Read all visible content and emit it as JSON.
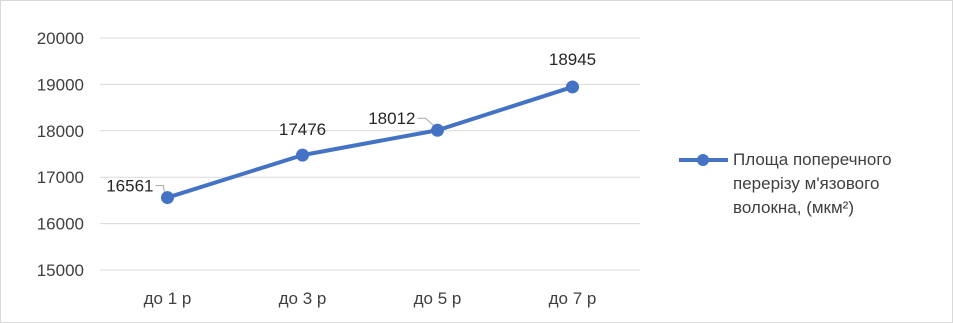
{
  "chart_data": {
    "type": "line",
    "categories": [
      "до 1 р",
      "до 3 р",
      "до 5 р",
      "до 7 р"
    ],
    "series": [
      {
        "name": "Площа поперечного перерізу м'язового волокна, (мкм²)",
        "values": [
          16561,
          17476,
          18012,
          18945
        ],
        "color": "#4472c4"
      }
    ],
    "ylim": [
      15000,
      20000
    ],
    "yticks": [
      15000,
      16000,
      17000,
      18000,
      19000,
      20000
    ],
    "grid": true,
    "legend": "right",
    "data_labels": true
  }
}
